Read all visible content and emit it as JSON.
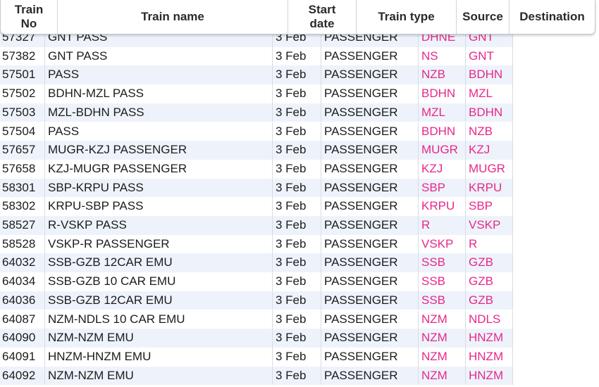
{
  "table": {
    "headers": {
      "train_no": "Train\nNo",
      "train_name": "Train name",
      "start_date": "Start\ndate",
      "train_type": "Train type",
      "source": "Source",
      "destination": "Destination"
    },
    "rows": [
      {
        "no": "57327",
        "name": "GNT PASS",
        "date": "3 Feb",
        "type": "PASSENGER",
        "src": "DHNE",
        "dst": "GNT"
      },
      {
        "no": "57382",
        "name": "GNT PASS",
        "date": "3 Feb",
        "type": "PASSENGER",
        "src": "NS",
        "dst": "GNT"
      },
      {
        "no": "57501",
        "name": "PASS",
        "date": "3 Feb",
        "type": "PASSENGER",
        "src": "NZB",
        "dst": "BDHN"
      },
      {
        "no": "57502",
        "name": "BDHN-MZL PASS",
        "date": "3 Feb",
        "type": "PASSENGER",
        "src": "BDHN",
        "dst": "MZL"
      },
      {
        "no": "57503",
        "name": "MZL-BDHN PASS",
        "date": "3 Feb",
        "type": "PASSENGER",
        "src": "MZL",
        "dst": "BDHN"
      },
      {
        "no": "57504",
        "name": "PASS",
        "date": "3 Feb",
        "type": "PASSENGER",
        "src": "BDHN",
        "dst": "NZB"
      },
      {
        "no": "57657",
        "name": "MUGR-KZJ PASSENGER",
        "date": "3 Feb",
        "type": "PASSENGER",
        "src": "MUGR",
        "dst": "KZJ"
      },
      {
        "no": "57658",
        "name": "KZJ-MUGR PASSENGER",
        "date": "3 Feb",
        "type": "PASSENGER",
        "src": "KZJ",
        "dst": "MUGR"
      },
      {
        "no": "58301",
        "name": "SBP-KRPU PASS",
        "date": "3 Feb",
        "type": "PASSENGER",
        "src": "SBP",
        "dst": "KRPU"
      },
      {
        "no": "58302",
        "name": "KRPU-SBP PASS",
        "date": "3 Feb",
        "type": "PASSENGER",
        "src": "KRPU",
        "dst": "SBP"
      },
      {
        "no": "58527",
        "name": "R-VSKP PASS",
        "date": "3 Feb",
        "type": "PASSENGER",
        "src": "R",
        "dst": "VSKP"
      },
      {
        "no": "58528",
        "name": "VSKP-R PASSENGER",
        "date": "3 Feb",
        "type": "PASSENGER",
        "src": "VSKP",
        "dst": "R"
      },
      {
        "no": "64032",
        "name": "SSB-GZB 12CAR EMU",
        "date": "3 Feb",
        "type": "PASSENGER",
        "src": "SSB",
        "dst": "GZB"
      },
      {
        "no": "64034",
        "name": "SSB-GZB 10 CAR EMU",
        "date": "3 Feb",
        "type": "PASSENGER",
        "src": "SSB",
        "dst": "GZB"
      },
      {
        "no": "64036",
        "name": "SSB-GZB 12CAR EMU",
        "date": "3 Feb",
        "type": "PASSENGER",
        "src": "SSB",
        "dst": "GZB"
      },
      {
        "no": "64087",
        "name": "NZM-NDLS 10 CAR EMU",
        "date": "3 Feb",
        "type": "PASSENGER",
        "src": "NZM",
        "dst": "NDLS"
      },
      {
        "no": "64090",
        "name": "NZM-NZM EMU",
        "date": "3 Feb",
        "type": "PASSENGER",
        "src": "NZM",
        "dst": "HNZM"
      },
      {
        "no": "64091",
        "name": "HNZM-HNZM EMU",
        "date": "3 Feb",
        "type": "PASSENGER",
        "src": "NZM",
        "dst": "HNZM"
      },
      {
        "no": "64092",
        "name": "NZM-NZM EMU",
        "date": "3 Feb",
        "type": "PASSENGER",
        "src": "NZM",
        "dst": "HNZM"
      }
    ]
  },
  "colors": {
    "station_text": "#e8278a",
    "row_stripe": "#eef3fb"
  }
}
